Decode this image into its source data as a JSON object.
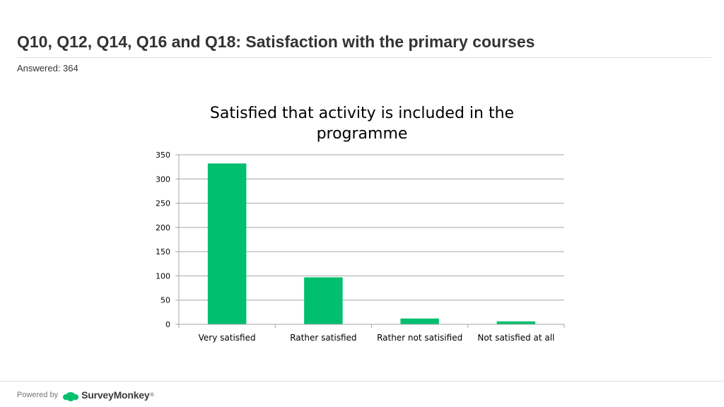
{
  "header": {
    "title": "Q10, Q12, Q14, Q16 and Q18: Satisfaction with the primary courses",
    "answered": "Answered: 364"
  },
  "footer": {
    "powered_by": "Powered by",
    "brand": "SurveyMonkey",
    "brand_mark": "®",
    "logo_icon": "surveymonkey-logo-icon",
    "brand_color": "#00BF6F"
  },
  "chart_data": {
    "type": "bar",
    "title": "Satisfied that activity is included in the programme",
    "title_lines": [
      "Satisfied that activity is included in the",
      "programme"
    ],
    "categories": [
      "Very satisfied",
      "Rather satisfied",
      "Rather not satisified",
      "Not satisfied at all"
    ],
    "values": [
      332,
      97,
      12,
      6
    ],
    "ylim": [
      0,
      350
    ],
    "yticks": [
      0,
      50,
      100,
      150,
      200,
      250,
      300,
      350
    ],
    "grid": true,
    "legend": "none",
    "bar_color": "#00BF6F",
    "grid_color": "#a6a6a6",
    "xlabel": "",
    "ylabel": ""
  }
}
